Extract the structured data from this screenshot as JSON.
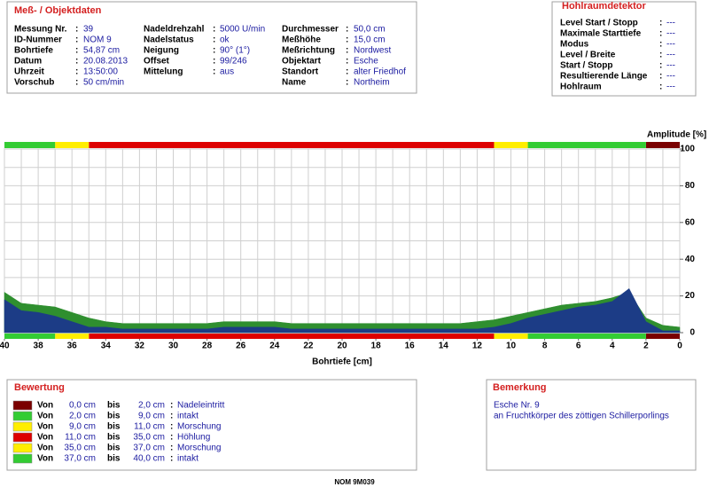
{
  "header": {
    "title": "Meß- / Objektdaten",
    "separator": ":",
    "columns": [
      [
        {
          "label": "Messung Nr.",
          "value": "39"
        },
        {
          "label": "ID-Nummer",
          "value": "NOM 9"
        },
        {
          "label": "Bohrtiefe",
          "value": "54,87 cm"
        },
        {
          "label": "Datum",
          "value": "20.08.2013"
        },
        {
          "label": "Uhrzeit",
          "value": "13:50:00"
        },
        {
          "label": "Vorschub",
          "value": "50 cm/min"
        }
      ],
      [
        {
          "label": "Nadeldrehzahl",
          "value": "5000 U/min"
        },
        {
          "label": "Nadelstatus",
          "value": "ok"
        },
        {
          "label": "Neigung",
          "value": "90° (1°)"
        },
        {
          "label": "Offset",
          "value": "99/246"
        },
        {
          "label": "Mittelung",
          "value": "aus"
        }
      ],
      [
        {
          "label": "Durchmesser",
          "value": "50,0 cm"
        },
        {
          "label": "Meßhöhe",
          "value": "15,0 cm"
        },
        {
          "label": "Meßrichtung",
          "value": "Nordwest"
        },
        {
          "label": "Objektart",
          "value": "Esche"
        },
        {
          "label": "Standort",
          "value": "alter Friedhof"
        },
        {
          "label": "Name",
          "value": "Northeim"
        }
      ]
    ]
  },
  "detector": {
    "title": "Hohlraumdetektor",
    "rows": [
      {
        "label": "Level Start / Stopp",
        "value": "---"
      },
      {
        "label": "Maximale Starttiefe",
        "value": "---"
      },
      {
        "label": "Modus",
        "value": "---"
      },
      {
        "label": "Level / Breite",
        "value": "---"
      },
      {
        "label": "Start / Stopp",
        "value": "---"
      },
      {
        "label": "Resultierende Länge",
        "value": "---"
      },
      {
        "label": "Hohlraum",
        "value": "---"
      }
    ]
  },
  "chart_data": {
    "type": "area",
    "y_label": "Amplitude [%]",
    "x_label": "Bohrtiefe [cm]",
    "xlim": [
      40,
      0
    ],
    "ylim": [
      0,
      100
    ],
    "xticks": [
      40,
      38,
      36,
      34,
      32,
      30,
      28,
      26,
      24,
      22,
      20,
      18,
      16,
      14,
      12,
      10,
      8,
      6,
      4,
      2,
      0
    ],
    "yticks": [
      0,
      20,
      40,
      60,
      80,
      100
    ],
    "grid": true,
    "grid_step": {
      "x": 1,
      "y": 10
    },
    "x": [
      40,
      39,
      38,
      37,
      36,
      35,
      34,
      33,
      32,
      31,
      30,
      29,
      28,
      27,
      26,
      25,
      24,
      23,
      22,
      21,
      20,
      19,
      18,
      17,
      16,
      15,
      14,
      13,
      12,
      11,
      10,
      9,
      8,
      7,
      6,
      5,
      4,
      3,
      2,
      1,
      0
    ],
    "series": [
      {
        "color": "#2f8f2f",
        "values": [
          22,
          16,
          15,
          14,
          11,
          8,
          6,
          5,
          5,
          5,
          5,
          5,
          5,
          6,
          6,
          6,
          6,
          5,
          5,
          5,
          5,
          5,
          5,
          5,
          5,
          5,
          5,
          5,
          6,
          7,
          9,
          11,
          13,
          15,
          16,
          17,
          19,
          22,
          8,
          4,
          3
        ]
      },
      {
        "color": "#1c3c86",
        "values": [
          18,
          12,
          11,
          9,
          6,
          3,
          3,
          2,
          2,
          2,
          2,
          2,
          2,
          3,
          3,
          3,
          3,
          2,
          2,
          2,
          2,
          2,
          2,
          2,
          2,
          2,
          2,
          2,
          2,
          3,
          5,
          8,
          10,
          12,
          14,
          15,
          17,
          24,
          6,
          1,
          1
        ]
      }
    ],
    "zones_title": "Bewertung",
    "zone_from_word": "Von",
    "zone_to_word": "bis",
    "zone_separator": ":",
    "zones": [
      {
        "from": {
          "value": 0,
          "label": "0,0 cm"
        },
        "to": {
          "value": 2,
          "label": "2,0 cm"
        },
        "color": "#7a0000",
        "label": "Nadeleintritt"
      },
      {
        "from": {
          "value": 2,
          "label": "2,0 cm"
        },
        "to": {
          "value": 9,
          "label": "9,0 cm"
        },
        "color": "#33cc33",
        "label": "intakt"
      },
      {
        "from": {
          "value": 9,
          "label": "9,0 cm"
        },
        "to": {
          "value": 11,
          "label": "11,0 cm"
        },
        "color": "#ffee00",
        "label": "Morschung"
      },
      {
        "from": {
          "value": 11,
          "label": "11,0 cm"
        },
        "to": {
          "value": 35,
          "label": "35,0 cm"
        },
        "color": "#dd0000",
        "label": "Höhlung"
      },
      {
        "from": {
          "value": 35,
          "label": "35,0 cm"
        },
        "to": {
          "value": 37,
          "label": "37,0 cm"
        },
        "color": "#ffee00",
        "label": "Morschung"
      },
      {
        "from": {
          "value": 37,
          "label": "37,0 cm"
        },
        "to": {
          "value": 40,
          "label": "40,0 cm"
        },
        "color": "#33cc33",
        "label": "intakt"
      }
    ]
  },
  "remark": {
    "title": "Bemerkung",
    "lines": [
      "Esche Nr. 9",
      "an Fruchtkörper des zöttigen Schillerporlings"
    ]
  },
  "footer": "NOM 9M039"
}
